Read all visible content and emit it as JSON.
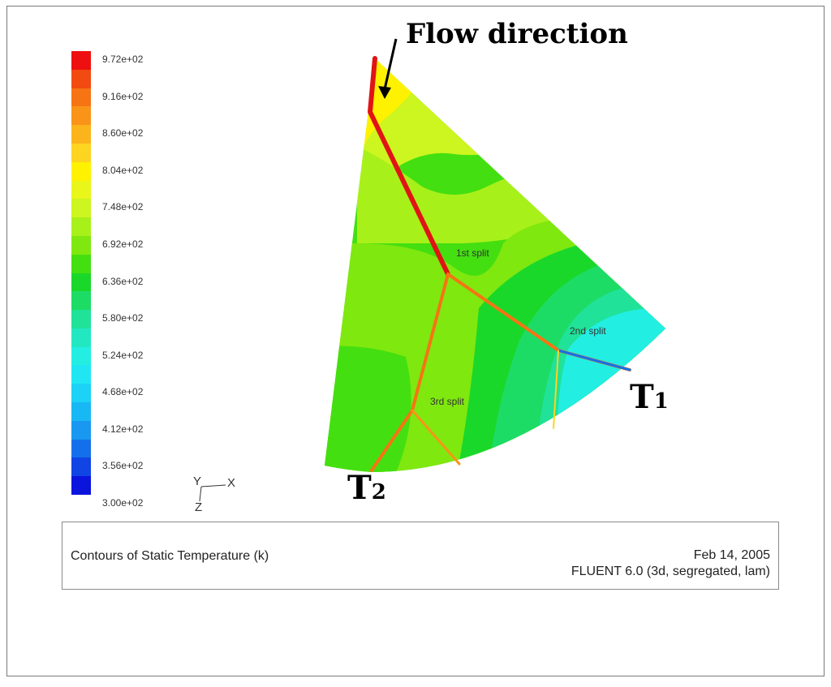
{
  "legend": {
    "ticks": [
      "9.72e+02",
      "9.16e+02",
      "8.60e+02",
      "8.04e+02",
      "7.48e+02",
      "6.92e+02",
      "6.36e+02",
      "5.80e+02",
      "5.24e+02",
      "4.68e+02",
      "4.12e+02",
      "3.56e+02",
      "3.00e+02"
    ],
    "colors": [
      "#ee1010",
      "#f24a10",
      "#f67414",
      "#f99418",
      "#fcb41c",
      "#fdd420",
      "#fff200",
      "#e9f61a",
      "#cdf51f",
      "#a8f01a",
      "#7fe80f",
      "#44df10",
      "#1ad82a",
      "#1ddc66",
      "#20e298",
      "#22e8c2",
      "#22eee2",
      "#20e6f4",
      "#1cd2f6",
      "#18b8f4",
      "#1898f0",
      "#1470ea",
      "#1044e4",
      "#0b14dc"
    ]
  },
  "annotations": {
    "flow_direction": "Flow direction",
    "t1_main": "T",
    "t1_sub": "1",
    "t2_main": "T",
    "t2_sub": "2",
    "split_1": "1st split",
    "split_2": "2nd split",
    "split_3": "3rd split"
  },
  "axes": {
    "y": "Y",
    "x": "X",
    "z": "Z"
  },
  "caption": {
    "title": "Contours of Static Temperature (k)",
    "date": "Feb 14, 2005",
    "software": "FLUENT 6.0 (3d, segregated, lam)"
  }
}
